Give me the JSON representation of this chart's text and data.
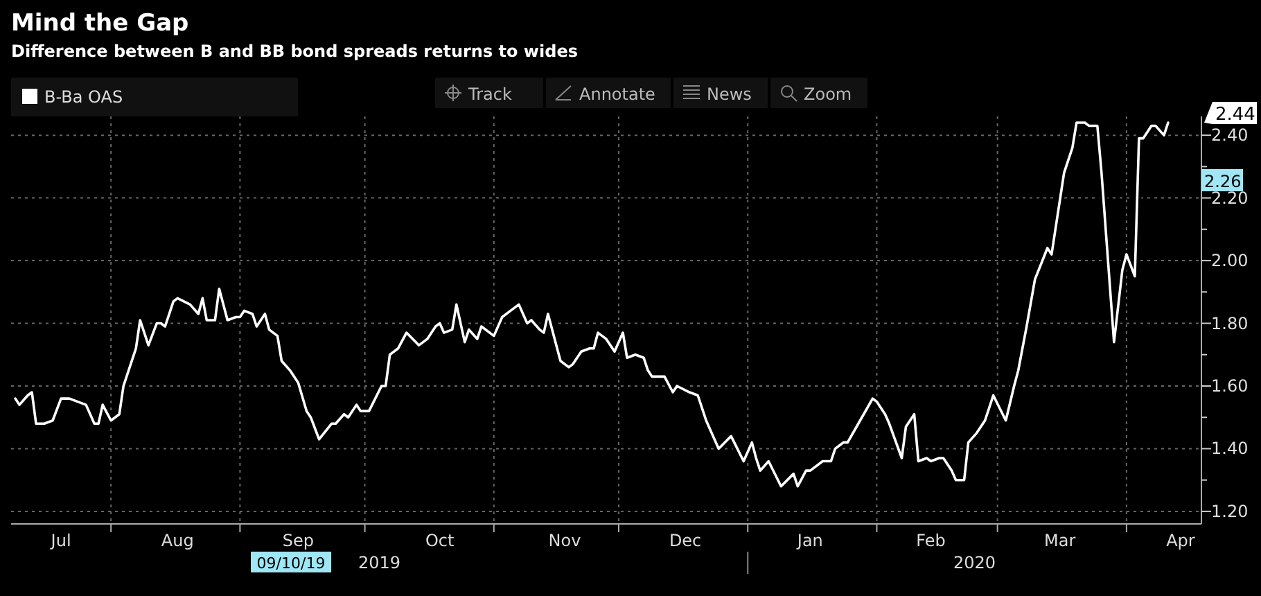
{
  "chart_data": {
    "type": "line",
    "title": "Mind the Gap",
    "subtitle": "Difference between B and BB bond spreads returns to wides",
    "x": [
      "2019-07-09",
      "2019-07-10",
      "2019-07-12",
      "2019-07-13",
      "2019-07-14",
      "2019-07-16",
      "2019-07-18",
      "2019-07-20",
      "2019-07-22",
      "2019-07-24",
      "2019-07-26",
      "2019-07-28",
      "2019-07-29",
      "2019-07-30",
      "2019-08-01",
      "2019-08-03",
      "2019-08-04",
      "2019-08-07",
      "2019-08-08",
      "2019-08-10",
      "2019-08-12",
      "2019-08-13",
      "2019-08-14",
      "2019-08-16",
      "2019-08-17",
      "2019-08-20",
      "2019-08-22",
      "2019-08-23",
      "2019-08-24",
      "2019-08-26",
      "2019-08-27",
      "2019-08-29",
      "2019-08-31",
      "2019-09-01",
      "2019-09-02",
      "2019-09-04",
      "2019-09-05",
      "2019-09-07",
      "2019-09-08",
      "2019-09-10",
      "2019-09-11",
      "2019-09-13",
      "2019-09-15",
      "2019-09-17",
      "2019-09-18",
      "2019-09-20",
      "2019-09-23",
      "2019-09-24",
      "2019-09-26",
      "2019-09-27",
      "2019-09-29",
      "2019-09-30",
      "2019-10-02",
      "2019-10-05",
      "2019-10-06",
      "2019-10-07",
      "2019-10-09",
      "2019-10-11",
      "2019-10-14",
      "2019-10-16",
      "2019-10-18",
      "2019-10-19",
      "2019-10-20",
      "2019-10-22",
      "2019-10-23",
      "2019-10-25",
      "2019-10-26",
      "2019-10-28",
      "2019-10-29",
      "2019-10-31",
      "2019-11-01",
      "2019-11-03",
      "2019-11-05",
      "2019-11-07",
      "2019-11-09",
      "2019-11-10",
      "2019-11-12",
      "2019-11-13",
      "2019-11-14",
      "2019-11-17",
      "2019-11-19",
      "2019-11-20",
      "2019-11-22",
      "2019-11-24",
      "2019-11-25",
      "2019-11-26",
      "2019-11-28",
      "2019-11-30",
      "2019-12-02",
      "2019-12-03",
      "2019-12-05",
      "2019-12-07",
      "2019-12-08",
      "2019-12-09",
      "2019-12-12",
      "2019-12-14",
      "2019-12-15",
      "2019-12-18",
      "2019-12-20",
      "2019-12-22",
      "2019-12-25",
      "2019-12-28",
      "2019-12-31",
      "2020-01-02",
      "2020-01-03",
      "2020-01-04",
      "2020-01-06",
      "2020-01-09",
      "2020-01-12",
      "2020-01-13",
      "2020-01-15",
      "2020-01-16",
      "2020-01-19",
      "2020-01-21",
      "2020-01-22",
      "2020-01-24",
      "2020-01-25",
      "2020-01-28",
      "2020-01-31",
      "2020-02-01",
      "2020-02-03",
      "2020-02-04",
      "2020-02-07",
      "2020-02-08",
      "2020-02-10",
      "2020-02-11",
      "2020-02-13",
      "2020-02-14",
      "2020-02-16",
      "2020-02-17",
      "2020-02-19",
      "2020-02-20",
      "2020-02-22",
      "2020-02-23",
      "2020-02-25",
      "2020-02-27",
      "2020-02-29",
      "2020-03-03",
      "2020-03-05",
      "2020-03-06",
      "2020-03-08",
      "2020-03-10",
      "2020-03-13",
      "2020-03-14",
      "2020-03-17",
      "2020-03-19",
      "2020-03-20",
      "2020-03-22",
      "2020-03-23",
      "2020-03-25",
      "2020-03-26",
      "2020-03-29",
      "2020-03-31",
      "2020-04-01",
      "2020-04-03",
      "2020-04-04",
      "2020-04-05",
      "2020-04-07",
      "2020-04-08",
      "2020-04-10",
      "2020-04-11"
    ],
    "series": [
      {
        "name": "B-Ba OAS",
        "color": "#ffffff",
        "values": [
          1.56,
          1.54,
          1.57,
          1.58,
          1.48,
          1.48,
          1.49,
          1.56,
          1.56,
          1.55,
          1.54,
          1.48,
          1.48,
          1.54,
          1.49,
          1.51,
          1.6,
          1.72,
          1.81,
          1.73,
          1.8,
          1.8,
          1.79,
          1.87,
          1.88,
          1.86,
          1.83,
          1.88,
          1.81,
          1.81,
          1.91,
          1.81,
          1.82,
          1.82,
          1.84,
          1.83,
          1.79,
          1.83,
          1.78,
          1.76,
          1.68,
          1.65,
          1.61,
          1.52,
          1.5,
          1.43,
          1.48,
          1.48,
          1.51,
          1.5,
          1.54,
          1.52,
          1.52,
          1.6,
          1.6,
          1.7,
          1.72,
          1.77,
          1.73,
          1.75,
          1.79,
          1.8,
          1.77,
          1.78,
          1.86,
          1.74,
          1.78,
          1.75,
          1.79,
          1.77,
          1.76,
          1.82,
          1.84,
          1.86,
          1.8,
          1.81,
          1.78,
          1.77,
          1.83,
          1.68,
          1.66,
          1.67,
          1.71,
          1.72,
          1.72,
          1.77,
          1.75,
          1.71,
          1.77,
          1.69,
          1.7,
          1.69,
          1.65,
          1.63,
          1.63,
          1.58,
          1.6,
          1.58,
          1.57,
          1.49,
          1.4,
          1.44,
          1.36,
          1.42,
          1.37,
          1.33,
          1.36,
          1.28,
          1.32,
          1.28,
          1.33,
          1.33,
          1.36,
          1.36,
          1.4,
          1.42,
          1.42,
          1.49,
          1.56,
          1.55,
          1.51,
          1.48,
          1.37,
          1.47,
          1.51,
          1.36,
          1.37,
          1.36,
          1.37,
          1.37,
          1.33,
          1.3,
          1.3,
          1.42,
          1.45,
          1.49,
          1.57,
          1.49,
          1.6,
          1.65,
          1.79,
          1.94,
          2.04,
          2.02,
          2.28,
          2.36,
          2.44,
          2.44,
          2.43,
          2.43,
          2.28,
          1.74,
          1.97,
          2.02,
          1.95,
          2.39,
          2.39,
          2.43,
          2.43,
          2.4,
          2.44
        ]
      }
    ],
    "xlim": [
      "2019-07-08",
      "2020-04-19"
    ],
    "xticks": [
      {
        "value": "2019-07-20",
        "label": "Jul"
      },
      {
        "value": "2019-08-01",
        "label": null
      },
      {
        "value": "2019-08-17",
        "label": "Aug"
      },
      {
        "value": "2019-09-01",
        "label": null
      },
      {
        "value": "2019-09-15",
        "label": "Sep"
      },
      {
        "value": "2019-10-01",
        "label": null
      },
      {
        "value": "2019-10-19",
        "label": "Oct"
      },
      {
        "value": "2019-11-01",
        "label": null
      },
      {
        "value": "2019-11-18",
        "label": "Nov"
      },
      {
        "value": "2019-12-01",
        "label": null
      },
      {
        "value": "2019-12-17",
        "label": "Dec"
      },
      {
        "value": "2020-01-01",
        "label": null
      },
      {
        "value": "2020-01-16",
        "label": "Jan"
      },
      {
        "value": "2020-02-01",
        "label": null
      },
      {
        "value": "2020-02-14",
        "label": "Feb"
      },
      {
        "value": "2020-03-01",
        "label": null
      },
      {
        "value": "2020-03-16",
        "label": "Mar"
      },
      {
        "value": "2020-04-01",
        "label": null
      },
      {
        "value": "2020-04-14",
        "label": "Apr"
      }
    ],
    "ylim": [
      1.16,
      2.46
    ],
    "yticks": [
      {
        "value": 1.2,
        "label": "1.20"
      },
      {
        "value": 1.3,
        "label": null
      },
      {
        "value": 1.4,
        "label": "1.40"
      },
      {
        "value": 1.5,
        "label": null
      },
      {
        "value": 1.6,
        "label": "1.60"
      },
      {
        "value": 1.7,
        "label": null
      },
      {
        "value": 1.8,
        "label": "1.80"
      },
      {
        "value": 1.9,
        "label": null
      },
      {
        "value": 2.0,
        "label": "2.00"
      },
      {
        "value": 2.1,
        "label": null
      },
      {
        "value": 2.2,
        "label": "2.20"
      },
      {
        "value": 2.3,
        "label": null
      },
      {
        "value": 2.4,
        "label": "2.40"
      }
    ],
    "grid": true,
    "legend": "top left",
    "marker": "none",
    "line_style": "solid",
    "annotations": [
      "2.44",
      "2.26",
      "09/10/19",
      "2019",
      "2020",
      "Track",
      "Annotate",
      "News",
      "Zoom"
    ]
  }
}
